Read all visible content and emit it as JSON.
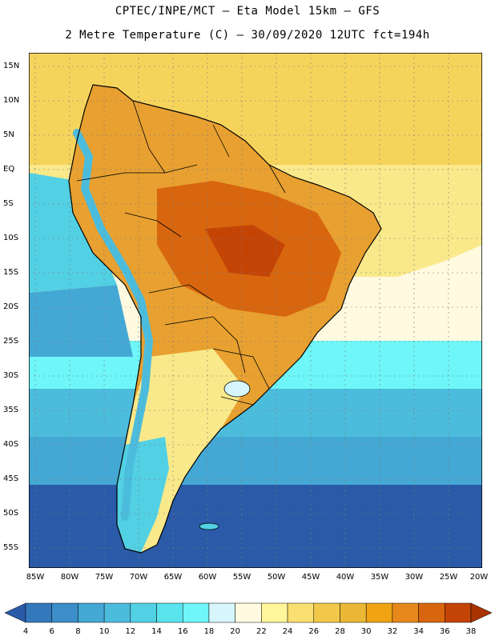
{
  "title": {
    "line1": "CPTEC/INPE/MCT –  Eta Model 15km – GFS",
    "line2": "2 Metre Temperature (C) – 30/09/2020 12UTC fct=194h"
  },
  "axes": {
    "lat_labels": [
      "15N",
      "10N",
      "5N",
      "EQ",
      "5S",
      "10S",
      "15S",
      "20S",
      "25S",
      "30S",
      "35S",
      "40S",
      "45S",
      "50S",
      "55S"
    ],
    "lon_labels": [
      "85W",
      "80W",
      "75W",
      "70W",
      "65W",
      "60W",
      "55W",
      "50W",
      "45W",
      "40W",
      "35W",
      "30W",
      "25W",
      "20W"
    ]
  },
  "colorbar": {
    "labels": [
      "4",
      "6",
      "8",
      "10",
      "12",
      "14",
      "16",
      "18",
      "20",
      "22",
      "24",
      "26",
      "28",
      "30",
      "32",
      "34",
      "36",
      "38"
    ],
    "colors": [
      "#2a5aa8",
      "#3478bc",
      "#3b8ec8",
      "#44a8d4",
      "#4cbcdc",
      "#52d0e4",
      "#5ae4ee",
      "#6ef6f8",
      "#d6f6fc",
      "#fffae0",
      "#fff59a",
      "#fae070",
      "#f2c84a",
      "#eab834",
      "#f0a414",
      "#e6881c",
      "#d8660e",
      "#c44406",
      "#a83402"
    ]
  },
  "icons": {
    "colorbar_left": "triangle-left-icon",
    "colorbar_right": "triangle-right-icon"
  }
}
